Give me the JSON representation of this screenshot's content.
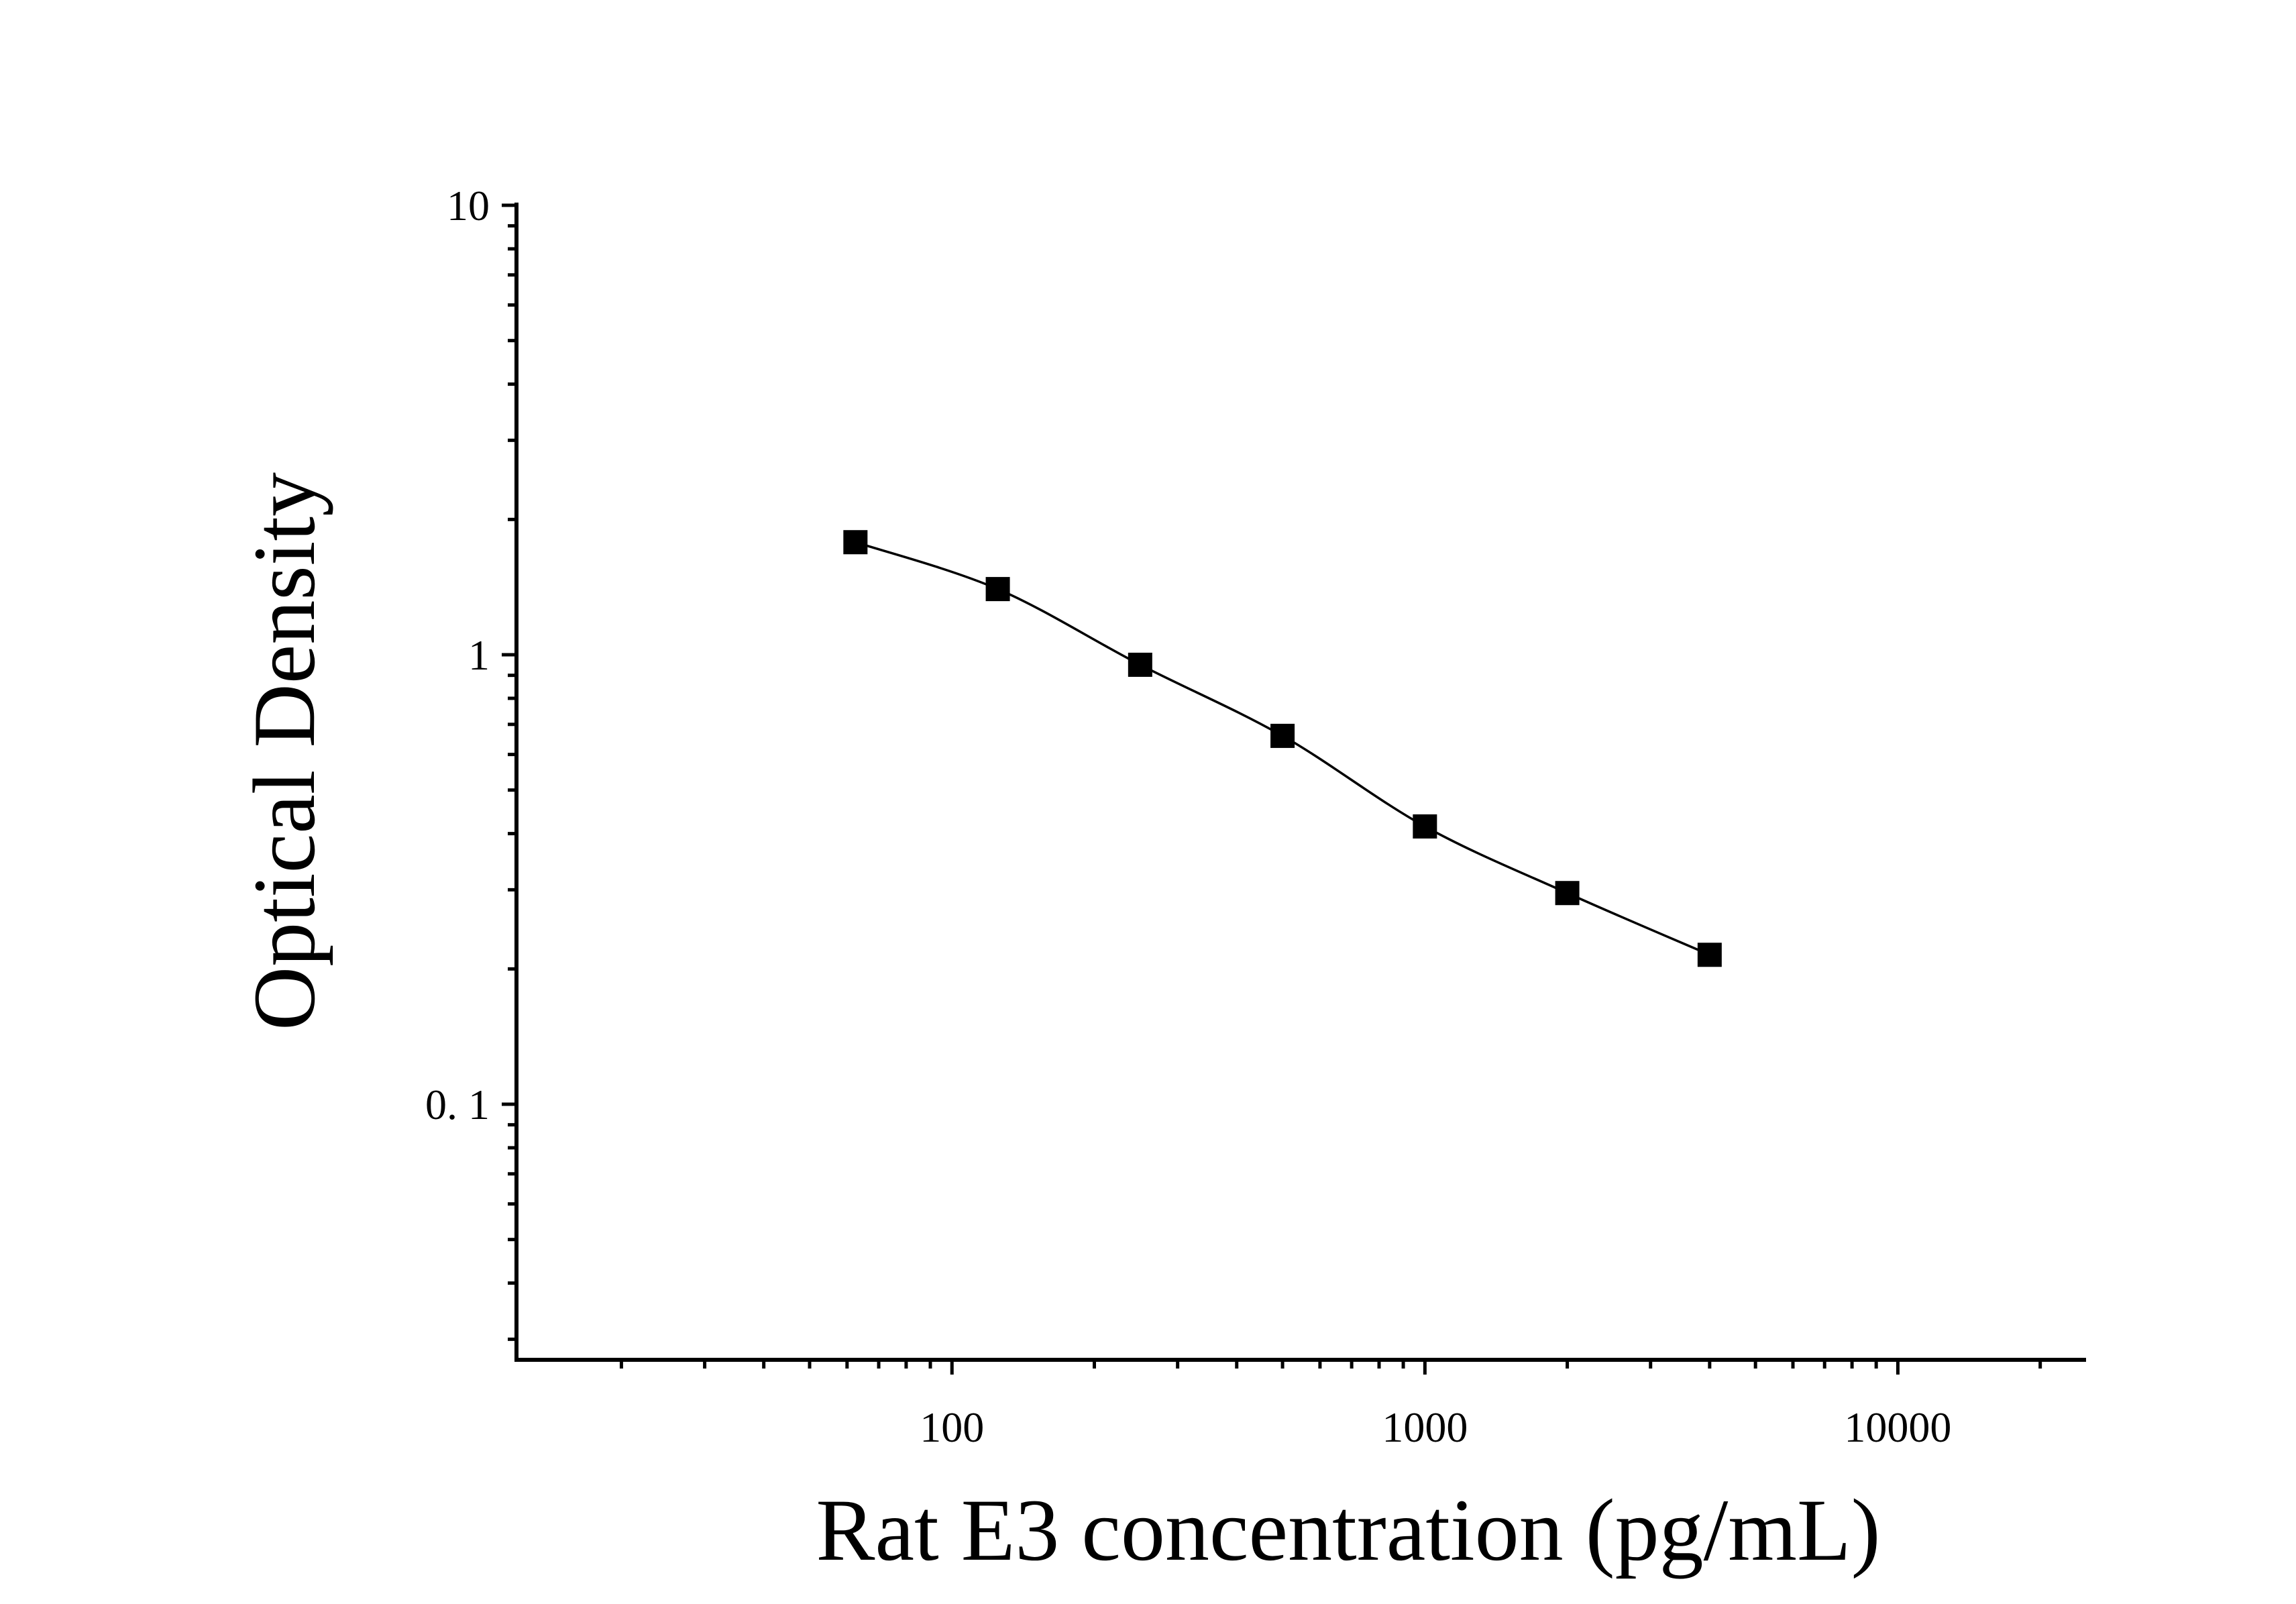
{
  "chart_data": {
    "type": "scatter",
    "title": "",
    "xlabel": "Rat E3 concentration (pg/mL)",
    "ylabel": "Optical Density",
    "x_scale": "log",
    "y_scale": "log",
    "xlim": [
      12,
      25000
    ],
    "ylim": [
      0.027,
      10
    ],
    "x_ticks": [
      {
        "value": 100,
        "label": "100"
      },
      {
        "value": 1000,
        "label": "1000"
      },
      {
        "value": 10000,
        "label": "10000"
      }
    ],
    "y_ticks": [
      {
        "value": 10,
        "label": "10"
      },
      {
        "value": 1,
        "label": "1"
      },
      {
        "value": 0.1,
        "label": "0. 1"
      }
    ],
    "grid": false,
    "legend": "none",
    "series": [
      {
        "marker": "square",
        "color": "#000000",
        "x": [
          62.5,
          125,
          250,
          500,
          1000,
          2000,
          4000
        ],
        "y": [
          1.78,
          1.4,
          0.95,
          0.66,
          0.415,
          0.295,
          0.215
        ]
      }
    ],
    "fit_curve": {
      "color": "#000000",
      "x": [
        62.5,
        125,
        250,
        500,
        1000,
        2000,
        4000
      ],
      "y": [
        1.78,
        1.4,
        0.95,
        0.66,
        0.415,
        0.295,
        0.215
      ]
    }
  }
}
